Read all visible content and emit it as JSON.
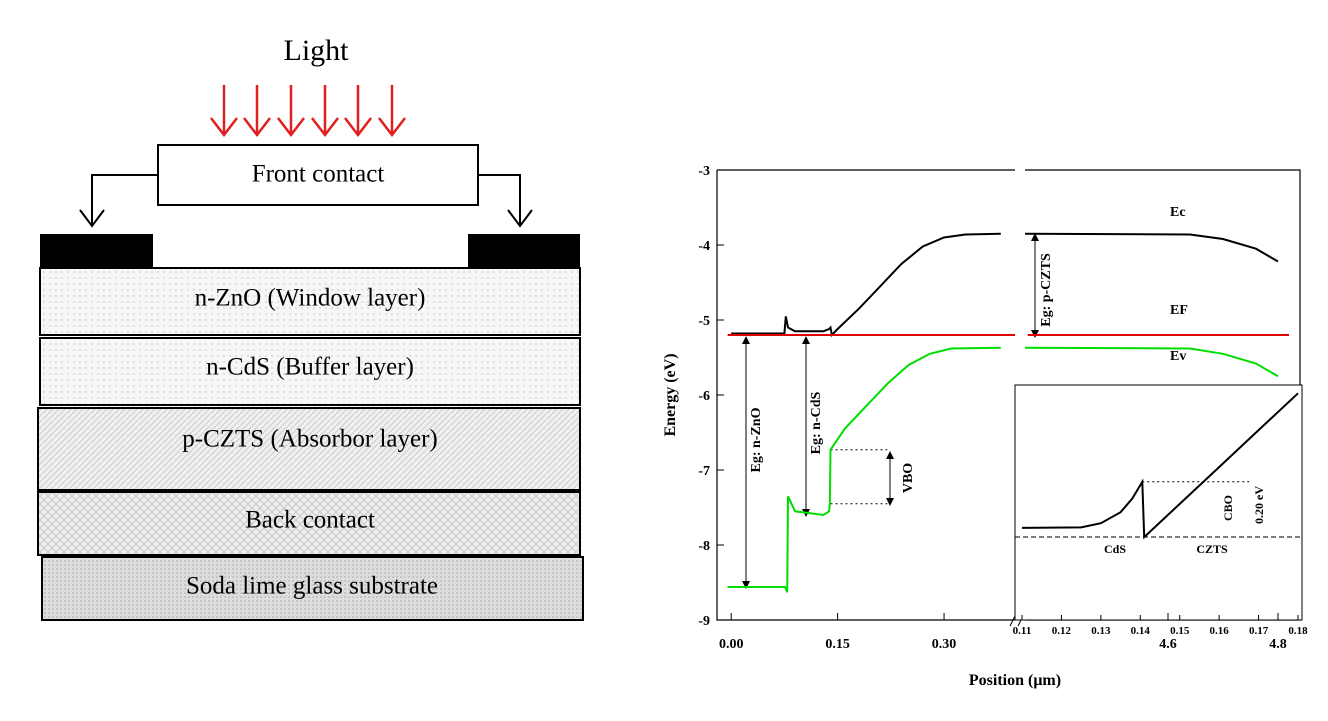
{
  "diagram": {
    "light": "Light",
    "front_contact": "Front contact",
    "layers": [
      "n-ZnO (Window layer)",
      "n-CdS (Buffer layer)",
      "p-CZTS (Absorbor layer)",
      "Back contact",
      "Soda lime glass substrate"
    ]
  },
  "chart_data": [
    {
      "type": "line",
      "xlabel": "Position (μm)",
      "ylabel": "Energy (eV)",
      "xlim": [
        [
          -0.02,
          0.4
        ],
        [
          4.34,
          4.84
        ]
      ],
      "xticks": [
        {
          "value": 0,
          "label": "0.00"
        },
        0.15,
        {
          "value": 0.3,
          "label": "0.30"
        },
        4.6,
        4.8
      ],
      "ylim": [
        -9,
        -3
      ],
      "yticks": [
        -3,
        -4,
        -5,
        -6,
        -7,
        -8,
        -9
      ],
      "series": [
        {
          "name": "Ec",
          "color": "#000000",
          "x": [
            0.0,
            0.075,
            0.077,
            0.08,
            0.09,
            0.13,
            0.138,
            0.14,
            0.142,
            0.15,
            0.18,
            0.21,
            0.24,
            0.27,
            0.3,
            0.33,
            0.38,
            null,
            4.34,
            4.64,
            4.7,
            4.76,
            4.8
          ],
          "values": [
            -5.18,
            -5.18,
            -4.95,
            -5.1,
            -5.15,
            -5.15,
            -5.12,
            -5.1,
            -5.2,
            -5.12,
            -4.85,
            -4.55,
            -4.25,
            -4.02,
            -3.9,
            -3.86,
            -3.85,
            null,
            -3.85,
            -3.86,
            -3.92,
            -4.05,
            -4.22
          ]
        },
        {
          "name": "EF",
          "color": "#e00000",
          "x": [
            -0.005,
            0.4,
            null,
            4.345,
            4.82
          ],
          "values": [
            -5.2,
            -5.2,
            null,
            -5.2,
            -5.2
          ]
        },
        {
          "name": "Ev",
          "color": "#00dd00",
          "x": [
            -0.005,
            0.076,
            0.079,
            0.08,
            0.09,
            0.13,
            0.138,
            0.139,
            0.14,
            0.16,
            0.19,
            0.22,
            0.25,
            0.28,
            0.31,
            0.38,
            null,
            4.34,
            4.64,
            4.7,
            4.76,
            4.8
          ],
          "values": [
            -8.56,
            -8.56,
            -8.63,
            -7.35,
            -7.55,
            -7.6,
            -7.55,
            -7.45,
            -6.73,
            -6.45,
            -6.15,
            -5.85,
            -5.6,
            -5.45,
            -5.38,
            -5.37,
            null,
            -5.37,
            -5.38,
            -5.45,
            -5.58,
            -5.75
          ]
        }
      ],
      "hlines": [
        -6.73,
        -7.45
      ],
      "annotations": [
        "Eg: n-ZnO",
        "Eg: n-CdS",
        "Eg: p-CZTS",
        "VBO"
      ]
    },
    {
      "type": "line",
      "xlim": [
        0.11,
        0.18
      ],
      "xticks": [
        0.11,
        0.12,
        0.13,
        0.14,
        0.15,
        0.16,
        0.17,
        0.18
      ],
      "ylim": [
        -5.5,
        -4.65
      ],
      "series": [
        {
          "color": "#000000",
          "x": [
            0.11,
            0.125,
            0.13,
            0.135,
            0.138,
            0.1405,
            0.141,
            0.16,
            0.18
          ],
          "values": [
            -5.167,
            -5.165,
            -5.15,
            -5.11,
            -5.06,
            -5.0,
            -5.2,
            -4.947,
            -4.68
          ]
        }
      ],
      "hlines": [
        -5.2,
        -5.0
      ],
      "annotations": [
        "CdS",
        "CZTS",
        "CBO",
        "0.20 eV"
      ]
    }
  ]
}
